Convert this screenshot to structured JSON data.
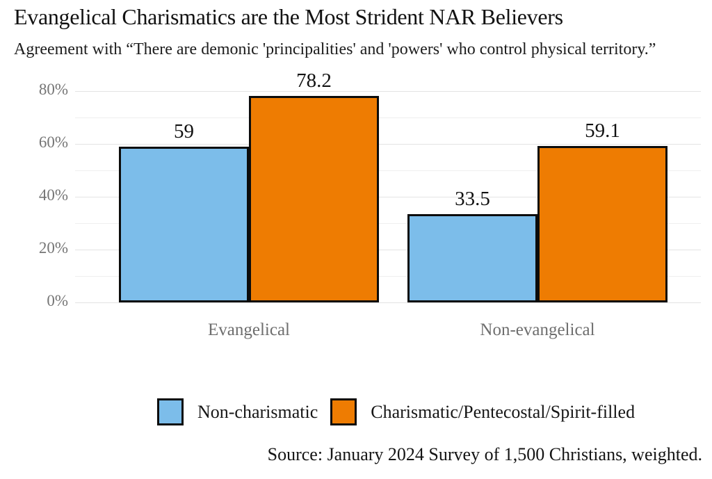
{
  "title": "Evangelical Charismatics are the Most Strident NAR Believers",
  "subtitle": "Agreement with “There are demonic 'principalities' and 'powers' who control physical territory.”",
  "source": "Source: January 2024 Survey of 1,500 Christians, weighted.",
  "colors": {
    "blue": "#7cbdea",
    "orange": "#ee7c02",
    "bar_border": "#0c0c0c",
    "major_grid": "#e3e3e3",
    "minor_grid": "#efefef",
    "tick_text": "#757575",
    "category_text": "#6e6e6e"
  },
  "chart_data": {
    "type": "bar",
    "title": "Evangelical Charismatics are the Most Strident NAR Believers",
    "subtitle": "Agreement with “There are demonic 'principalities' and 'powers' who control physical territory.”",
    "categories": [
      "Evangelical",
      "Non-evangelical"
    ],
    "series": [
      {
        "name": "Non-charismatic",
        "color": "#7cbdea",
        "values": [
          59,
          33.5
        ]
      },
      {
        "name": "Charismatic/Pentecostal/Spirit-filled",
        "color": "#ee7c02",
        "values": [
          78.2,
          59.1
        ]
      }
    ],
    "xlabel": "",
    "ylabel": "",
    "ylim": [
      0,
      80
    ],
    "yticks": [
      {
        "value": 0,
        "label": "0%"
      },
      {
        "value": 20,
        "label": "20%"
      },
      {
        "value": 40,
        "label": "40%"
      },
      {
        "value": 60,
        "label": "60%"
      },
      {
        "value": 80,
        "label": "80%"
      }
    ],
    "minor_grid_step": 10,
    "grid": true,
    "legend_position": "bottom",
    "bar_labels": true
  }
}
